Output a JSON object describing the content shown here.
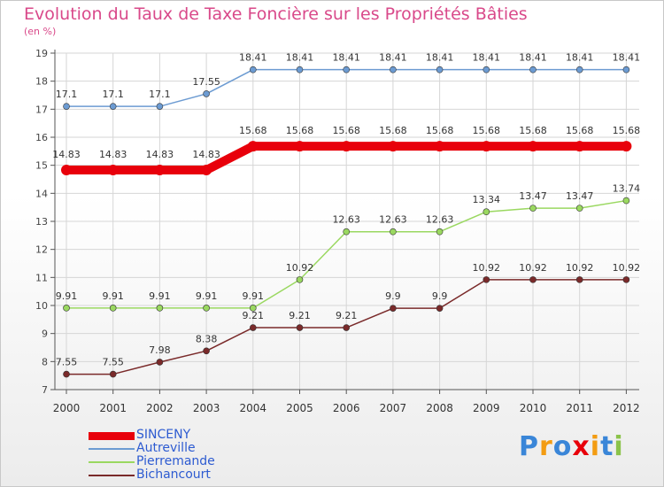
{
  "chart_data": {
    "type": "line",
    "title": "Evolution du Taux de Taxe Foncière sur les Propriétés Bâties",
    "subtitle": "(en %)",
    "xlabel": "",
    "ylabel": "",
    "categories": [
      "2000",
      "2001",
      "2002",
      "2003",
      "2004",
      "2005",
      "2006",
      "2007",
      "2008",
      "2009",
      "2010",
      "2011",
      "2012"
    ],
    "ylim": [
      7,
      19
    ],
    "yticks": [
      7,
      8,
      9,
      10,
      11,
      12,
      13,
      14,
      15,
      16,
      17,
      18,
      19
    ],
    "grid": true,
    "legend_position": "bottom-left",
    "series": [
      {
        "name": "SINCENY",
        "color": "#e8000b",
        "values": [
          14.83,
          14.83,
          14.83,
          14.83,
          15.68,
          15.68,
          15.68,
          15.68,
          15.68,
          15.68,
          15.68,
          15.68,
          15.68
        ],
        "labels": [
          "14.83",
          "14.83",
          "14.83",
          "14.83",
          "15.68",
          "15.68",
          "15.68",
          "15.68",
          "15.68",
          "15.68",
          "15.68",
          "15.68",
          "15.68"
        ]
      },
      {
        "name": "Autreville",
        "color": "#6c9bd2",
        "values": [
          17.1,
          17.1,
          17.1,
          17.55,
          18.41,
          18.41,
          18.41,
          18.41,
          18.41,
          18.41,
          18.41,
          18.41,
          18.41
        ],
        "labels": [
          "17.1",
          "17.1",
          "17.1",
          "17.55",
          "18.41",
          "18.41",
          "18.41",
          "18.41",
          "18.41",
          "18.41",
          "18.41",
          "18.41",
          "18.41"
        ]
      },
      {
        "name": "Pierremande",
        "color": "#9ad860",
        "values": [
          9.91,
          9.91,
          9.91,
          9.91,
          9.91,
          10.92,
          12.63,
          12.63,
          12.63,
          13.34,
          13.47,
          13.47,
          13.74
        ],
        "labels": [
          "9.91",
          "9.91",
          "9.91",
          "9.91",
          "9.91",
          "10.92",
          "12.63",
          "12.63",
          "12.63",
          "13.34",
          "13.47",
          "13.47",
          "13.74"
        ]
      },
      {
        "name": "Bichancourt",
        "color": "#7a2a2a",
        "values": [
          7.55,
          7.55,
          7.98,
          8.38,
          9.21,
          9.21,
          9.21,
          9.9,
          9.9,
          10.92,
          10.92,
          10.92,
          10.92
        ],
        "labels": [
          "7.55",
          "7.55",
          "7.98",
          "8.38",
          "9.21",
          "9.21",
          "9.21",
          "9.9",
          "9.9",
          "10.92",
          "10.92",
          "10.92",
          "10.92"
        ]
      }
    ]
  },
  "brand": {
    "letters": [
      "P",
      "r",
      "o",
      "x",
      "i",
      "t",
      "i"
    ],
    "colors": [
      "#3a86d8",
      "#f39c12",
      "#3a86d8",
      "#e8000b",
      "#f39c12",
      "#3a86d8",
      "#8bc34a"
    ]
  }
}
